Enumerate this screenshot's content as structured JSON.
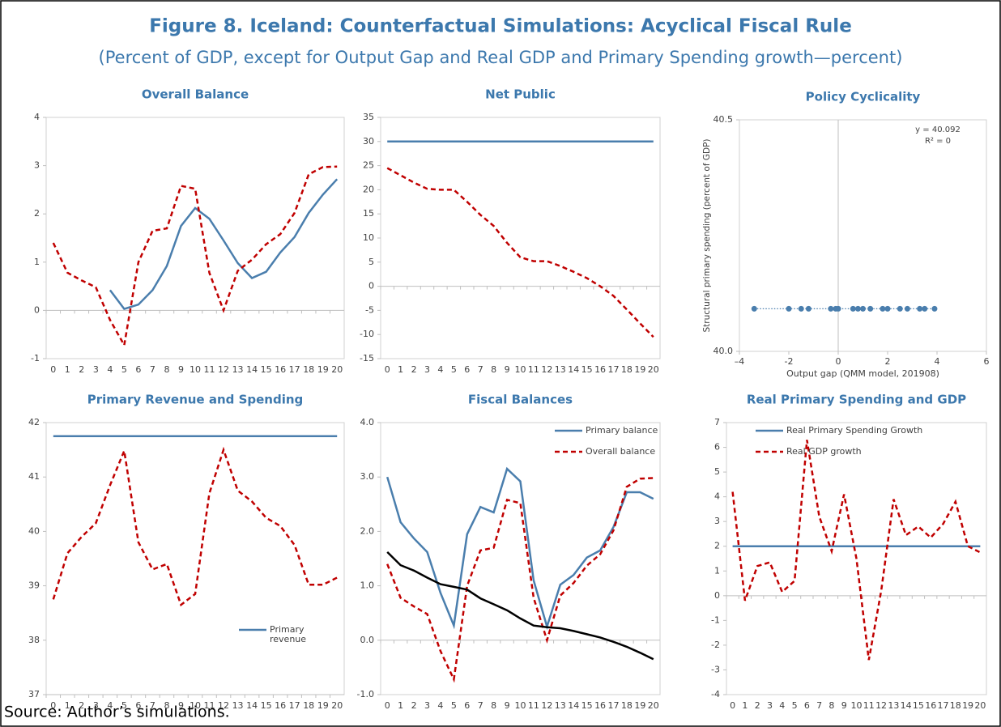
{
  "title": "Figure 8. Iceland: Counterfactual Simulations: Acyclical Fiscal Rule",
  "subtitle": "(Percent of GDP, except for Output Gap and Real GDP and Primary Spending growth—percent)",
  "source": "Source: Author’s simulations.",
  "chart_data": [
    {
      "type": "line",
      "title": "Overall Balance",
      "categories": [
        "0",
        "1",
        "2",
        "3",
        "4",
        "5",
        "6",
        "7",
        "8",
        "9",
        "10",
        "11",
        "12",
        "13",
        "14",
        "15",
        "16",
        "17",
        "18",
        "19",
        "20"
      ],
      "ylim": [
        -1,
        4
      ],
      "yticks": [
        -1,
        0,
        1,
        2,
        3,
        4
      ],
      "series": [
        {
          "color": "#4a7ead",
          "dashed": false,
          "values": [
            null,
            null,
            null,
            null,
            0.42,
            0.03,
            0.12,
            0.42,
            0.92,
            1.75,
            2.12,
            1.9,
            1.45,
            0.98,
            0.67,
            0.8,
            1.2,
            1.52,
            2.02,
            2.4,
            2.72
          ]
        },
        {
          "color": "#c00000",
          "dashed": true,
          "values": [
            1.4,
            0.78,
            0.62,
            0.48,
            -0.2,
            -0.72,
            1.0,
            1.65,
            1.7,
            2.58,
            2.52,
            0.78,
            0.0,
            0.82,
            1.05,
            1.37,
            1.58,
            2.02,
            2.82,
            2.97,
            2.98
          ]
        }
      ]
    },
    {
      "type": "line",
      "title": "Net Public",
      "categories": [
        "0",
        "1",
        "2",
        "3",
        "4",
        "5",
        "6",
        "7",
        "8",
        "9",
        "10",
        "11",
        "12",
        "13",
        "14",
        "15",
        "16",
        "17",
        "18",
        "19",
        "20"
      ],
      "ylim": [
        -15,
        35
      ],
      "yticks": [
        -15,
        -10,
        -5,
        0,
        5,
        10,
        15,
        20,
        25,
        30,
        35
      ],
      "series": [
        {
          "color": "#4a7ead",
          "dashed": false,
          "values": [
            30,
            30,
            30,
            30,
            30,
            30,
            30,
            30,
            30,
            30,
            30,
            30,
            30,
            30,
            30,
            30,
            30,
            30,
            30,
            30,
            30
          ]
        },
        {
          "color": "#c00000",
          "dashed": true,
          "values": [
            24.5,
            23,
            21.5,
            20.2,
            20,
            20,
            17.5,
            14.8,
            12.5,
            9,
            6,
            5.2,
            5.2,
            4.2,
            3,
            1.7,
            0,
            -2,
            -4.8,
            -7.7,
            -10.5
          ]
        }
      ]
    },
    {
      "type": "scatter",
      "title": "Policy Cyclicality",
      "xlabel": "Output gap (QMM model, 201908)",
      "ylabel": "Structural primary spending (percent of GDP)",
      "annotations": [
        "y = 40.092",
        "R² = 0"
      ],
      "xlim": [
        -4,
        6
      ],
      "xticks": [
        {
          "value": -4,
          "label": "–4"
        },
        -2,
        0,
        2,
        4,
        6
      ],
      "ylim": [
        40,
        40.5
      ],
      "yticks": [
        {
          "value": 40,
          "label": "40.0"
        },
        40.5
      ],
      "x": [
        -3.4,
        -2.0,
        -1.5,
        -1.2,
        -0.3,
        -0.1,
        0.0,
        0.6,
        0.8,
        1.0,
        1.3,
        1.8,
        2.0,
        2.5,
        2.8,
        3.3,
        3.5,
        3.9
      ],
      "series": [
        {
          "color": "#4a7ead",
          "values": [
            40.092,
            40.092,
            40.092,
            40.092,
            40.092,
            40.092,
            40.092,
            40.092,
            40.092,
            40.092,
            40.092,
            40.092,
            40.092,
            40.092,
            40.092,
            40.092,
            40.092,
            40.092
          ]
        }
      ]
    },
    {
      "type": "line",
      "title": "Primary Revenue and Spending",
      "categories": [
        "0",
        "1",
        "2",
        "3",
        "4",
        "5",
        "6",
        "7",
        "8",
        "9",
        "10",
        "11",
        "12",
        "13",
        "14",
        "15",
        "16",
        "17",
        "18",
        "19",
        "20"
      ],
      "ylim": [
        37,
        42
      ],
      "yticks": [
        37,
        38,
        39,
        40,
        41,
        42
      ],
      "legend": "lower right",
      "series": [
        {
          "name": "Primary revenue",
          "color": "#4a7ead",
          "dashed": false,
          "values": [
            41.75,
            41.75,
            41.75,
            41.75,
            41.75,
            41.75,
            41.75,
            41.75,
            41.75,
            41.75,
            41.75,
            41.75,
            41.75,
            41.75,
            41.75,
            41.75,
            41.75,
            41.75,
            41.75,
            41.75,
            41.75
          ]
        },
        {
          "color": "#c00000",
          "dashed": true,
          "values": [
            38.75,
            39.6,
            39.9,
            40.15,
            40.85,
            41.48,
            39.8,
            39.3,
            39.4,
            38.65,
            38.85,
            40.7,
            41.5,
            40.75,
            40.55,
            40.25,
            40.1,
            39.75,
            39.02,
            39.02,
            39.15
          ]
        }
      ]
    },
    {
      "type": "line",
      "title": "Fiscal Balances",
      "categories": [
        "0",
        "1",
        "2",
        "3",
        "4",
        "5",
        "6",
        "7",
        "8",
        "9",
        "10",
        "11",
        "12",
        "13",
        "14",
        "15",
        "16",
        "17",
        "18",
        "19",
        "20"
      ],
      "ylim": [
        -1,
        4
      ],
      "yticks": [
        {
          "value": -1,
          "label": "-1.0"
        },
        {
          "value": 0,
          "label": "0.0"
        },
        {
          "value": 1,
          "label": "1.0"
        },
        {
          "value": 2,
          "label": "2.0"
        },
        {
          "value": 3,
          "label": "3.0"
        },
        {
          "value": 4,
          "label": "4.0"
        }
      ],
      "legend": "upper right",
      "series": [
        {
          "name": "Primary balance",
          "color": "#4a7ead",
          "dashed": false,
          "values": [
            3.0,
            2.17,
            1.87,
            1.62,
            0.87,
            0.27,
            1.95,
            2.45,
            2.35,
            3.15,
            2.92,
            1.1,
            0.25,
            1.02,
            1.2,
            1.52,
            1.65,
            2.08,
            2.72,
            2.72,
            2.6
          ]
        },
        {
          "name": "Overall balance",
          "color": "#c00000",
          "dashed": true,
          "values": [
            1.4,
            0.78,
            0.62,
            0.48,
            -0.2,
            -0.72,
            1.0,
            1.65,
            1.7,
            2.58,
            2.52,
            0.78,
            0.0,
            0.82,
            1.05,
            1.37,
            1.58,
            2.02,
            2.82,
            2.97,
            2.98
          ]
        },
        {
          "color": "#000000",
          "dashed": false,
          "values": [
            1.62,
            1.38,
            1.28,
            1.15,
            1.03,
            0.98,
            0.93,
            0.77,
            0.66,
            0.55,
            0.4,
            0.27,
            0.24,
            0.22,
            0.17,
            0.11,
            0.05,
            -0.03,
            -0.12,
            -0.23,
            -0.35
          ]
        }
      ]
    },
    {
      "type": "line",
      "title": "Real Primary Spending and GDP",
      "categories": [
        "0",
        "1",
        "2",
        "3",
        "4",
        "5",
        "6",
        "7",
        "8",
        "9",
        "10",
        "11",
        "12",
        "13",
        "14",
        "15",
        "16",
        "17",
        "18",
        "19",
        "20"
      ],
      "ylim": [
        -4,
        7
      ],
      "yticks": [
        -4,
        -3,
        -2,
        -1,
        0,
        1,
        2,
        3,
        4,
        5,
        6,
        7
      ],
      "legend": "upper right",
      "series": [
        {
          "name": "Real Primary Spending Growth",
          "color": "#4a7ead",
          "dashed": false,
          "values": [
            2,
            2,
            2,
            2,
            2,
            2,
            2,
            2,
            2,
            2,
            2,
            2,
            2,
            2,
            2,
            2,
            2,
            2,
            2,
            2,
            2
          ]
        },
        {
          "name": "Real GDP growth",
          "color": "#c00000",
          "dashed": true,
          "values": [
            4.2,
            -0.2,
            1.2,
            1.35,
            0.15,
            0.6,
            6.3,
            3.2,
            1.8,
            4.1,
            1.5,
            -2.6,
            0.2,
            3.9,
            2.45,
            2.8,
            2.35,
            2.9,
            3.8,
            2.0,
            1.75
          ]
        }
      ]
    }
  ]
}
